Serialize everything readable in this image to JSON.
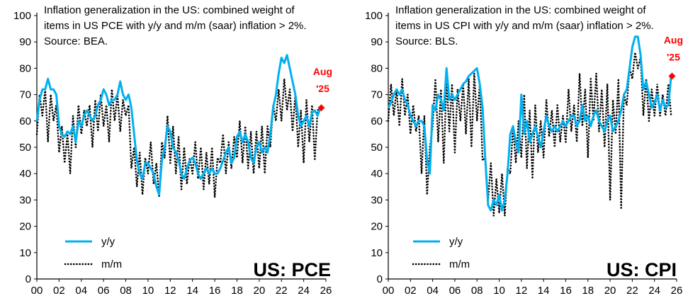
{
  "colors": {
    "yy": "#00B0F0",
    "mm": "#000000",
    "marker": "#FF0000"
  },
  "chart_data": [
    {
      "type": "line",
      "panel_label": "US: PCE",
      "title_lines": [
        "Inflation generalization in the US: combined weight of",
        "items in US PCE with y/y and m/m (saar) inflation > 2%.",
        "Source: BEA."
      ],
      "xlim": [
        2000,
        2026
      ],
      "ylim": [
        0,
        100
      ],
      "x_tick_labels": [
        "00",
        "02",
        "04",
        "06",
        "08",
        "10",
        "12",
        "14",
        "16",
        "18",
        "20",
        "22",
        "24",
        "26"
      ],
      "y_tick_labels": [
        "0",
        "10",
        "20",
        "30",
        "40",
        "50",
        "60",
        "70",
        "80",
        "90",
        "100"
      ],
      "x_start": 2000,
      "x_step": 0.25,
      "legend": [
        "y/y",
        "m/m"
      ],
      "annotation": {
        "line1": "Aug",
        "line2": "'25",
        "x": 2025.58,
        "y": 65
      },
      "series": [
        {
          "name": "y/y",
          "values": [
            60,
            68,
            72,
            72,
            76,
            72,
            72,
            70,
            58,
            55,
            54,
            56,
            55,
            58,
            52,
            60,
            58,
            62,
            64,
            62,
            60,
            62,
            66,
            68,
            72,
            70,
            66,
            68,
            68,
            70,
            75,
            70,
            68,
            70,
            65,
            55,
            45,
            40,
            38,
            44,
            44,
            42,
            40,
            35,
            32,
            45,
            50,
            58,
            56,
            50,
            48,
            45,
            40,
            38,
            42,
            45,
            46,
            44,
            40,
            38,
            40,
            42,
            40,
            42,
            40,
            40,
            42,
            45,
            48,
            50,
            44,
            46,
            54,
            56,
            52,
            55,
            52,
            46,
            44,
            50,
            52,
            48,
            50,
            48,
            55,
            65,
            70,
            78,
            84,
            82,
            85,
            80,
            75,
            70,
            62,
            58,
            60,
            62,
            58,
            63,
            64,
            62,
            65
          ]
        },
        {
          "name": "m/m",
          "values": [
            55,
            70,
            62,
            72,
            52,
            70,
            60,
            66,
            48,
            58,
            44,
            55,
            40,
            62,
            50,
            66,
            55,
            64,
            58,
            66,
            50,
            68,
            56,
            70,
            58,
            66,
            52,
            72,
            60,
            70,
            56,
            68,
            62,
            66,
            42,
            50,
            35,
            48,
            32,
            46,
            40,
            52,
            36,
            44,
            31,
            52,
            46,
            62,
            44,
            58,
            40,
            54,
            34,
            50,
            36,
            46,
            40,
            52,
            38,
            50,
            34,
            48,
            36,
            50,
            31,
            46,
            44,
            55,
            40,
            52,
            42,
            54,
            46,
            60,
            44,
            58,
            42,
            56,
            40,
            56,
            42,
            58,
            40,
            58,
            50,
            66,
            60,
            72,
            60,
            76,
            64,
            72,
            56,
            70,
            50,
            64,
            44,
            68,
            52,
            66,
            45,
            64,
            65
          ]
        }
      ]
    },
    {
      "type": "line",
      "panel_label": "US: CPI",
      "title_lines": [
        "Inflation generalization in the US: combined weight of",
        "items in US CPI with y/y and m/m (saar) inflation > 2%.",
        "Source: BLS."
      ],
      "xlim": [
        2000,
        2026
      ],
      "ylim": [
        0,
        100
      ],
      "x_tick_labels": [
        "00",
        "02",
        "04",
        "06",
        "08",
        "10",
        "12",
        "14",
        "16",
        "18",
        "20",
        "22",
        "24",
        "26"
      ],
      "y_tick_labels": [
        "0",
        "10",
        "20",
        "30",
        "40",
        "50",
        "60",
        "70",
        "80",
        "90",
        "100"
      ],
      "x_start": 2000,
      "x_step": 0.25,
      "legend": [
        "y/y",
        "m/m"
      ],
      "annotation": {
        "line1": "Aug",
        "line2": "'25",
        "x": 2025.58,
        "y": 77
      },
      "series": [
        {
          "name": "y/y",
          "values": [
            65,
            67,
            70,
            72,
            70,
            72,
            68,
            66,
            62,
            60,
            58,
            60,
            60,
            58,
            45,
            40,
            66,
            64,
            70,
            68,
            64,
            80,
            68,
            70,
            68,
            70,
            72,
            74,
            75,
            77,
            78,
            79,
            80,
            74,
            65,
            45,
            28,
            26,
            30,
            28,
            32,
            26,
            30,
            40,
            55,
            58,
            52,
            48,
            70,
            55,
            60,
            52,
            55,
            58,
            54,
            50,
            56,
            62,
            58,
            56,
            58,
            56,
            58,
            60,
            58,
            60,
            62,
            62,
            58,
            60,
            66,
            60,
            62,
            58,
            62,
            64,
            60,
            58,
            56,
            60,
            62,
            56,
            58,
            60,
            64,
            70,
            72,
            80,
            88,
            92,
            92,
            85,
            72,
            75,
            70,
            65,
            67,
            70,
            64,
            68,
            65,
            66,
            77
          ]
        },
        {
          "name": "m/m",
          "values": [
            60,
            74,
            62,
            72,
            58,
            76,
            62,
            70,
            55,
            66,
            56,
            62,
            40,
            62,
            32,
            50,
            58,
            76,
            52,
            72,
            44,
            76,
            56,
            74,
            48,
            72,
            60,
            74,
            55,
            76,
            50,
            78,
            60,
            74,
            45,
            46,
            30,
            44,
            24,
            38,
            25,
            40,
            24,
            42,
            40,
            58,
            44,
            60,
            46,
            70,
            42,
            64,
            38,
            66,
            48,
            60,
            46,
            68,
            54,
            64,
            50,
            66,
            52,
            62,
            52,
            72,
            56,
            66,
            52,
            78,
            58,
            72,
            46,
            76,
            60,
            78,
            56,
            72,
            50,
            74,
            30,
            68,
            55,
            76,
            27,
            70,
            66,
            80,
            76,
            86,
            80,
            84,
            62,
            76,
            60,
            72,
            62,
            74,
            62,
            70,
            62,
            74,
            62
          ]
        }
      ]
    }
  ]
}
